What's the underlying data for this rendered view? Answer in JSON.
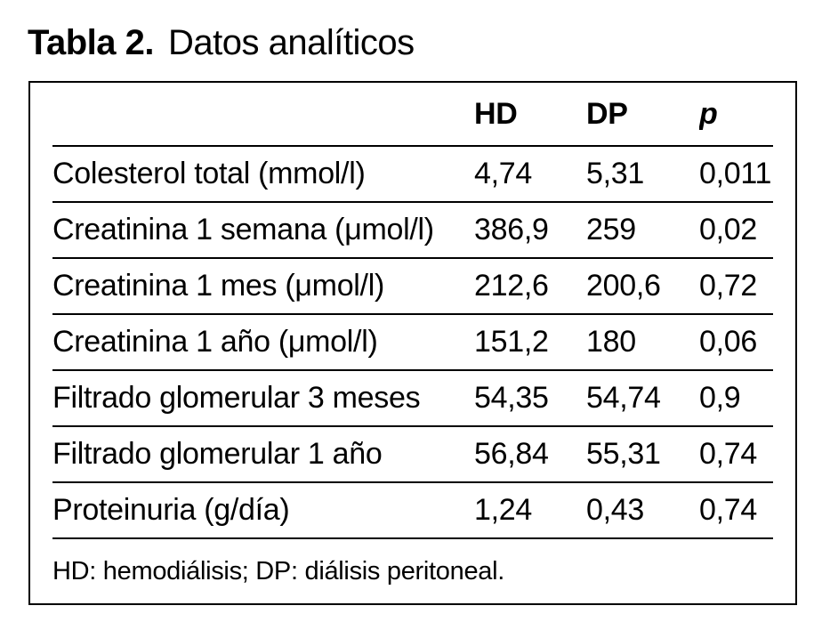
{
  "title": {
    "label": "Tabla 2.",
    "text": "Datos analíticos"
  },
  "table": {
    "columns": {
      "hd": "HD",
      "dp": "DP",
      "p": "p"
    },
    "rows": [
      {
        "label": "Colesterol total (mmol/l)",
        "hd": "4,74",
        "dp": "5,31",
        "p": "0,011"
      },
      {
        "label": "Creatinina 1 semana (μmol/l)",
        "hd": "386,9",
        "dp": "259",
        "p": "0,02"
      },
      {
        "label": "Creatinina 1 mes (μmol/l)",
        "hd": "212,6",
        "dp": "200,6",
        "p": "0,72"
      },
      {
        "label": "Creatinina 1 año (μmol/l)",
        "hd": "151,2",
        "dp": "180",
        "p": "0,06"
      },
      {
        "label": "Filtrado glomerular 3 meses",
        "hd": "54,35",
        "dp": "54,74",
        "p": "0,9"
      },
      {
        "label": "Filtrado glomerular 1 año",
        "hd": "56,84",
        "dp": "55,31",
        "p": "0,74"
      },
      {
        "label": "Proteinuria (g/día)",
        "hd": "1,24",
        "dp": "0,43",
        "p": "0,74"
      }
    ],
    "footnote": "HD: hemodiálisis; DP: diálisis peritoneal.",
    "colors": {
      "text": "#000000",
      "rules": "#000000",
      "background": "#ffffff"
    }
  }
}
